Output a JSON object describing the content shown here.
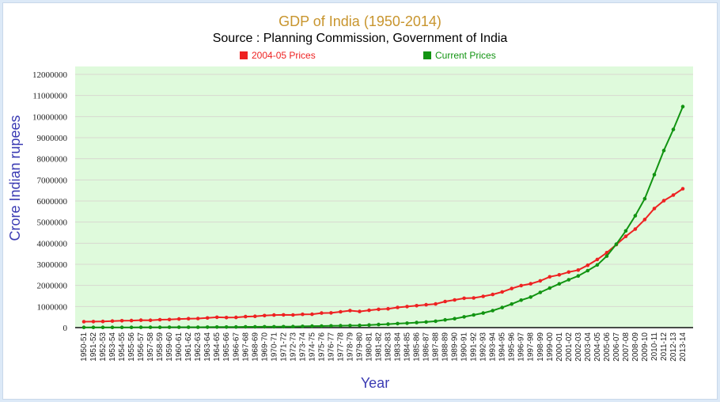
{
  "chart_data": {
    "type": "line",
    "title": "GDP of India (1950-2014)",
    "subtitle": "Source : Planning Commission, Government of India",
    "xlabel": "Year",
    "ylabel": "Crore Indian rupees",
    "ylim": [
      0,
      12000000
    ],
    "yticks": [
      "0",
      "1000000",
      "2000000",
      "3000000",
      "4000000",
      "5000000",
      "6000000",
      "7000000",
      "8000000",
      "9000000",
      "10000000",
      "11000000",
      "12000000"
    ],
    "grid": true,
    "legend_position": "top-center",
    "x": [
      "1950-51",
      "1951-52",
      "1952-53",
      "1953-54",
      "1954-55",
      "1955-56",
      "1956-57",
      "1957-58",
      "1958-59",
      "1959-60",
      "1960-61",
      "1961-62",
      "1962-63",
      "1963-64",
      "1964-65",
      "1965-66",
      "1966-67",
      "1967-68",
      "1968-69",
      "1969-70",
      "1970-71",
      "1971-72",
      "1972-73",
      "1973-74",
      "1974-75",
      "1975-76",
      "1976-77",
      "1977-78",
      "1978-79",
      "1979-80",
      "1980-81",
      "1981-82",
      "1982-83",
      "1983-84",
      "1984-85",
      "1985-86",
      "1986-87",
      "1987-88",
      "1988-89",
      "1989-90",
      "1990-91",
      "1991-92",
      "1992-93",
      "1993-94",
      "1994-95",
      "1995-96",
      "1996-97",
      "1997-98",
      "1998-99",
      "1999-00",
      "2000-01",
      "2001-02",
      "2002-03",
      "2003-04",
      "2004-05",
      "2005-06",
      "2006-07",
      "2007-08",
      "2008-09",
      "2009-10",
      "2010-11",
      "2011-12",
      "2012-13",
      "2013-14"
    ],
    "series": [
      {
        "name": "2004-05 Prices",
        "color": "#ee2222",
        "values": [
          279618,
          286147,
          294267,
          312177,
          325431,
          333766,
          352766,
          348500,
          374948,
          383153,
          410279,
          424011,
          432888,
          456401,
          490348,
          477938,
          483367,
          522935,
          536135,
          571782,
          596044,
          602866,
          600603,
          628791,
          635075,
          690191,
          698917,
          751216,
          807057,
          764887,
          820794,
          868091,
          893604,
          958008,
          995876,
          1039251,
          1082919,
          1121104,
          1237773,
          1313002,
          1392604,
          1404961,
          1479591,
          1570813,
          1691141,
          1851940,
          1991856,
          2078981,
          2217573,
          2409003,
          2501812,
          2632888,
          2727271,
          2953865,
          3227389,
          3550170,
          3932598,
          4322221,
          4668418,
          5124128,
          5644624,
          6013478,
          6279812,
          6580522
        ]
      },
      {
        "name": "Current Prices",
        "color": "#129412",
        "values": [
          10401,
          10966,
          10737,
          11803,
          11209,
          11621,
          13856,
          14252,
          16000,
          17168,
          17049,
          18271,
          19564,
          22523,
          26127,
          27297,
          30857,
          35697,
          37269,
          40869,
          42222,
          44985,
          49462,
          59699,
          71469,
          75325,
          81003,
          90878,
          97411,
          105370,
          125234,
          147137,
          164467,
          191035,
          210978,
          239174,
          266426,
          304238,
          366031,
          423465,
          510390,
          598132,
          688539,
          806066,
          954001,
          1118586,
          1301788,
          1447613,
          1668739,
          1875681,
          2073342,
          2268260,
          2448108,
          2699822,
          2971464,
          3390503,
          3953276,
          4582086,
          5303567,
          6108903,
          7248860,
          8391691,
          9388876,
          10472807
        ]
      }
    ]
  }
}
